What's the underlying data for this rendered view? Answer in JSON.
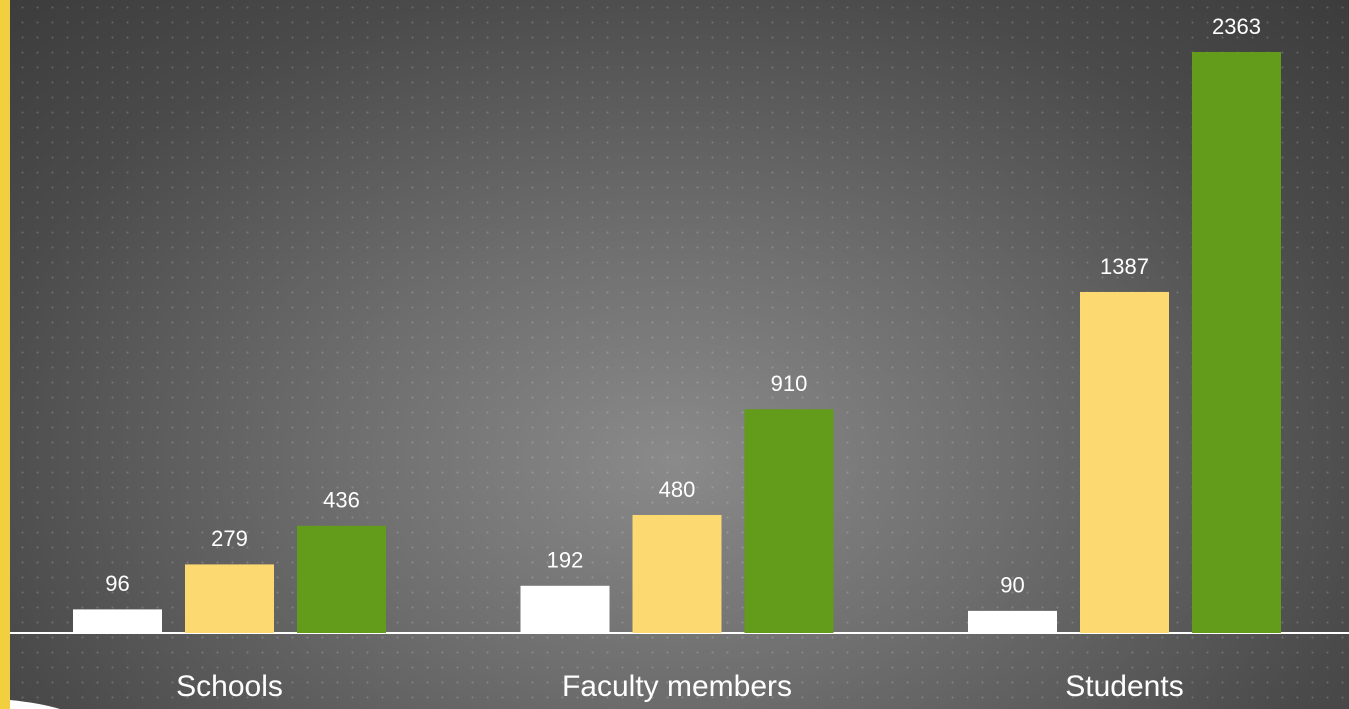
{
  "chart_data": {
    "type": "bar",
    "categories": [
      "Schools",
      "Faculty members",
      "Students"
    ],
    "series": [
      {
        "color": "#ffffff",
        "values": [
          96,
          192,
          90
        ]
      },
      {
        "color": "#fcd971",
        "values": [
          279,
          480,
          1387
        ]
      },
      {
        "color": "#639b1a",
        "values": [
          436,
          910,
          2363
        ]
      }
    ]
  }
}
